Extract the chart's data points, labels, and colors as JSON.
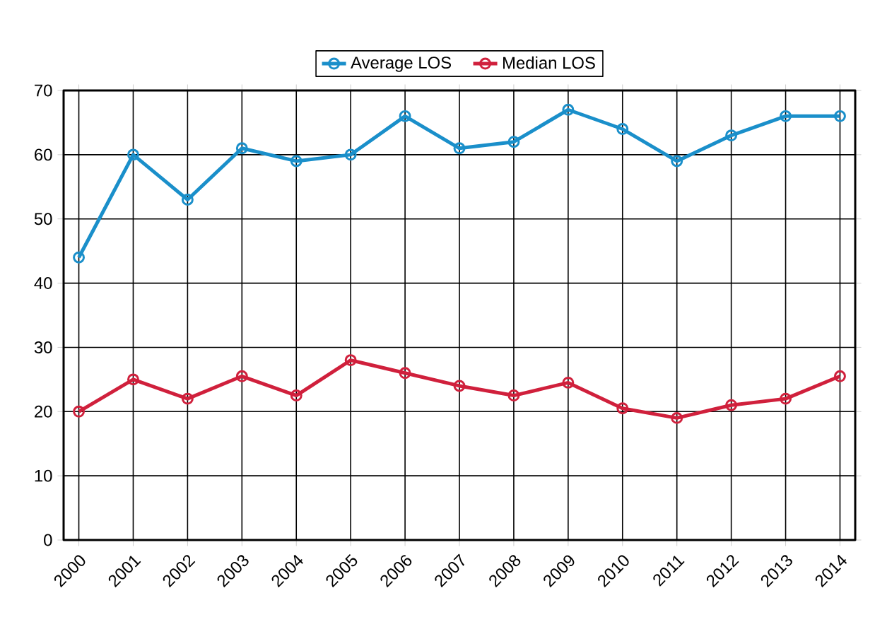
{
  "chart_data": {
    "type": "line",
    "categories": [
      "2000",
      "2001",
      "2002",
      "2003",
      "2004",
      "2005",
      "2006",
      "2007",
      "2008",
      "2009",
      "2010",
      "2011",
      "2012",
      "2013",
      "2014"
    ],
    "series": [
      {
        "name": "Average LOS",
        "color": "#1a8fca",
        "values": [
          44,
          60,
          53,
          61,
          59,
          60,
          66,
          61,
          62,
          67,
          64,
          59,
          63,
          66,
          66
        ]
      },
      {
        "name": "Median LOS",
        "color": "#d0203c",
        "values": [
          20,
          25,
          22,
          25.5,
          22.5,
          28,
          26,
          24,
          22.5,
          24.5,
          20.5,
          19,
          21,
          22,
          25.5
        ]
      }
    ],
    "ylim": [
      0,
      70
    ],
    "yticks": [
      0,
      10,
      20,
      30,
      40,
      50,
      60,
      70
    ],
    "grid": true,
    "legend": "top",
    "marker": "circle",
    "line_style": "solid"
  }
}
